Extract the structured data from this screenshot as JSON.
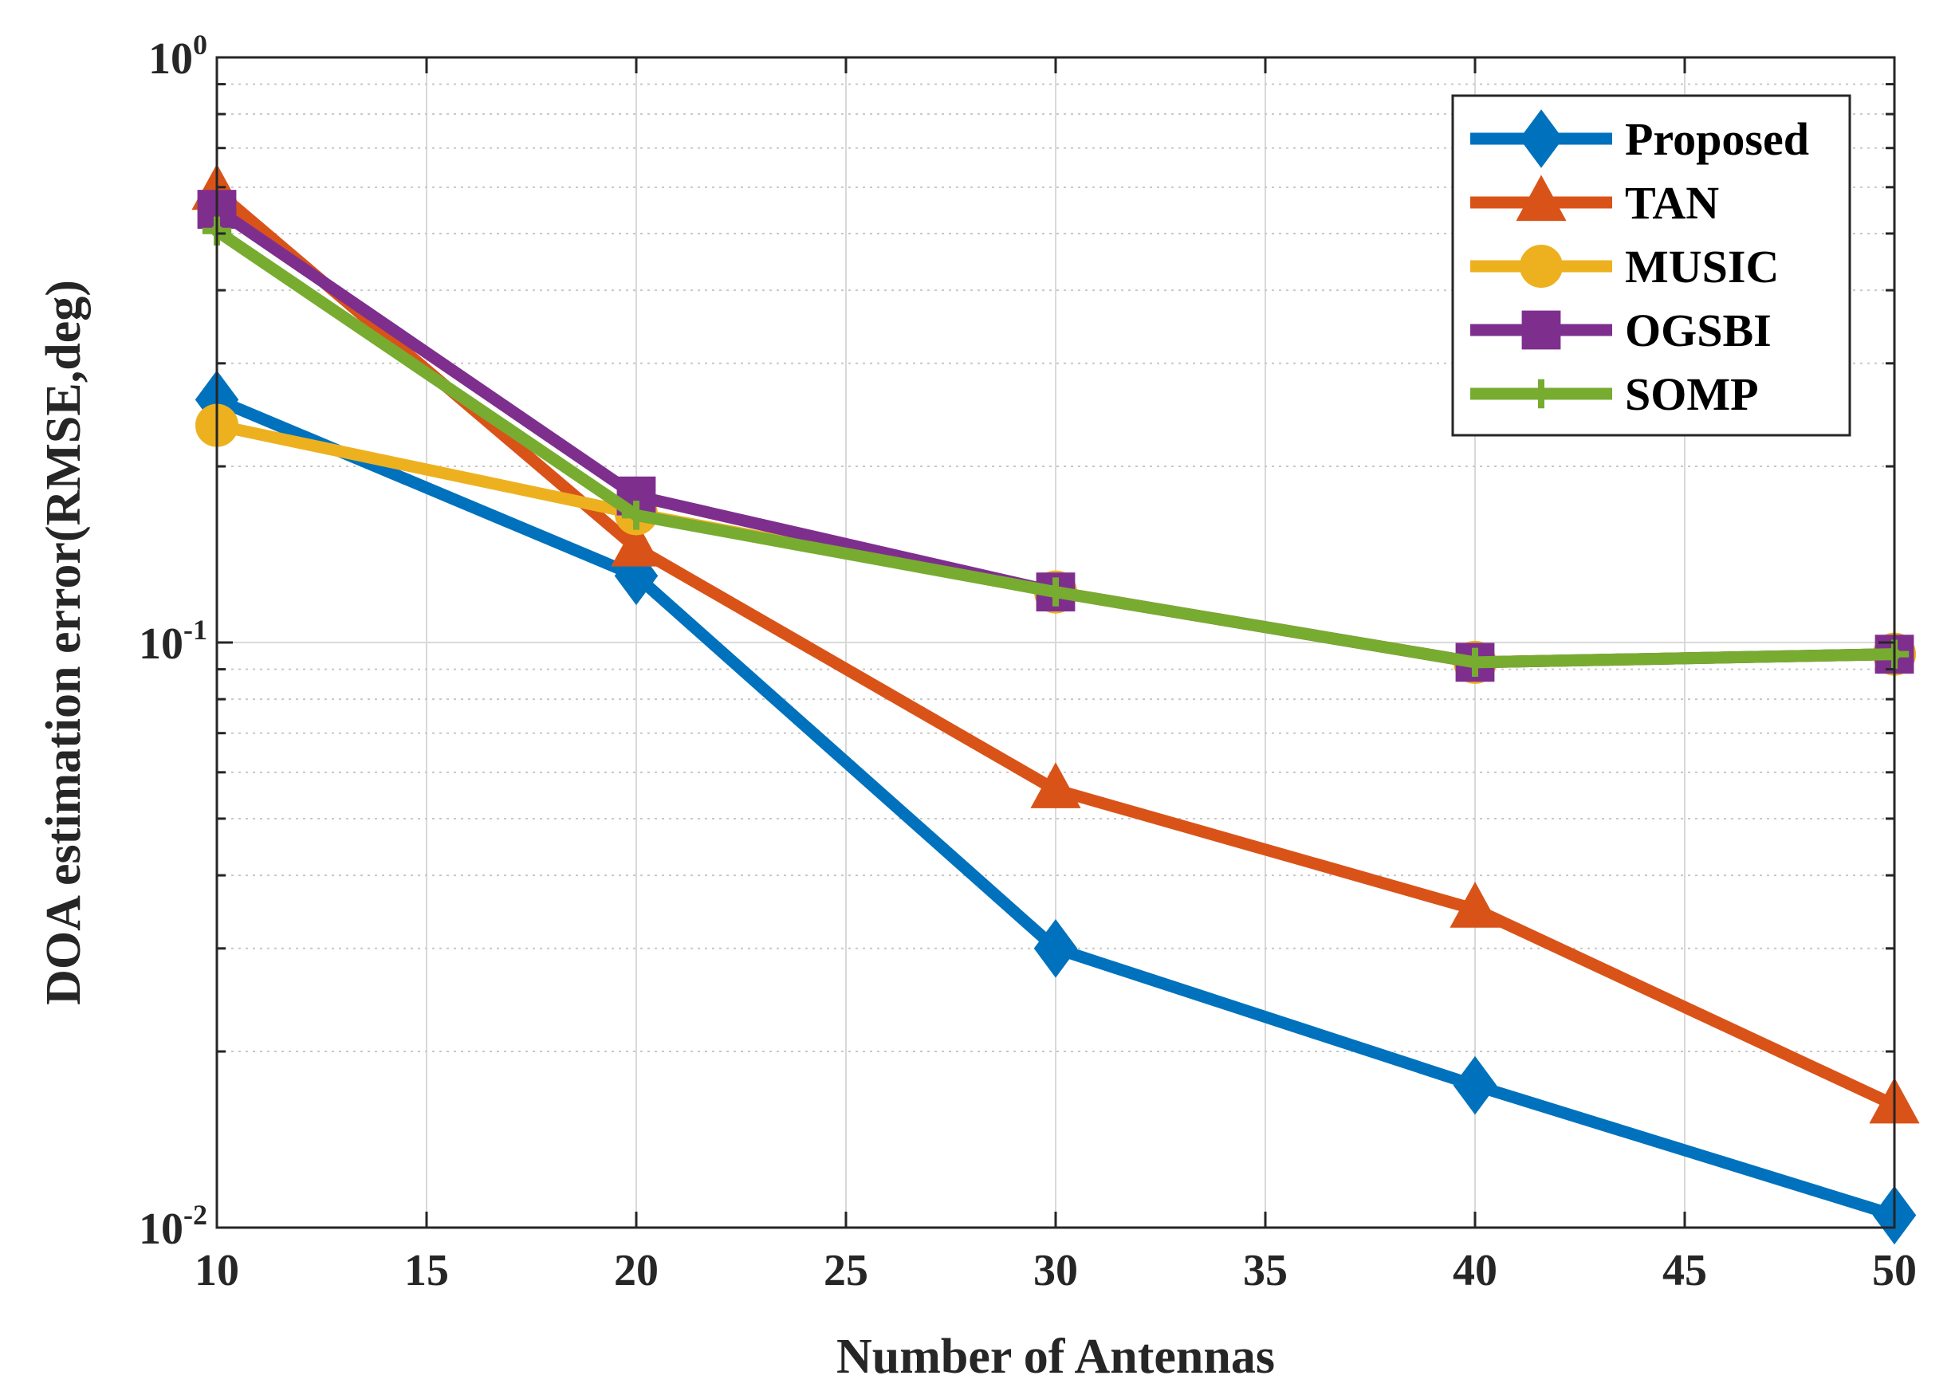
{
  "chart_data": {
    "type": "line",
    "title": "",
    "xlabel": "Number of Antennas",
    "ylabel": "DOA estimation error(RMSE,deg)",
    "x": [
      10,
      20,
      30,
      40,
      50
    ],
    "xlim": [
      10,
      50
    ],
    "xticks": [
      10,
      15,
      20,
      25,
      30,
      35,
      40,
      45,
      50
    ],
    "yscale": "log",
    "ylim": [
      0.01,
      1
    ],
    "yticks": [
      {
        "value": 0.01,
        "base": "10",
        "exp": "-2"
      },
      {
        "value": 0.1,
        "base": "10",
        "exp": "-1"
      },
      {
        "value": 1,
        "base": "10",
        "exp": "0"
      }
    ],
    "grid": true,
    "legend_position": "top-right",
    "series": [
      {
        "name": "Proposed",
        "color": "#0072BD",
        "marker": "diamond",
        "values": [
          0.26,
          0.13,
          0.03,
          0.0175,
          0.0105
        ]
      },
      {
        "name": "TAN",
        "color": "#D95319",
        "marker": "triangle",
        "values": [
          0.59,
          0.145,
          0.056,
          0.035,
          0.0162
        ]
      },
      {
        "name": "MUSIC",
        "color": "#EDB120",
        "marker": "circle",
        "values": [
          0.235,
          0.166,
          0.122,
          0.0925,
          0.0955
        ]
      },
      {
        "name": "OGSBI",
        "color": "#7E2F8E",
        "marker": "square",
        "values": [
          0.55,
          0.178,
          0.122,
          0.0925,
          0.0955
        ]
      },
      {
        "name": "SOMP",
        "color": "#77AC30",
        "marker": "plus",
        "values": [
          0.505,
          0.165,
          0.122,
          0.0925,
          0.0955
        ]
      }
    ]
  }
}
